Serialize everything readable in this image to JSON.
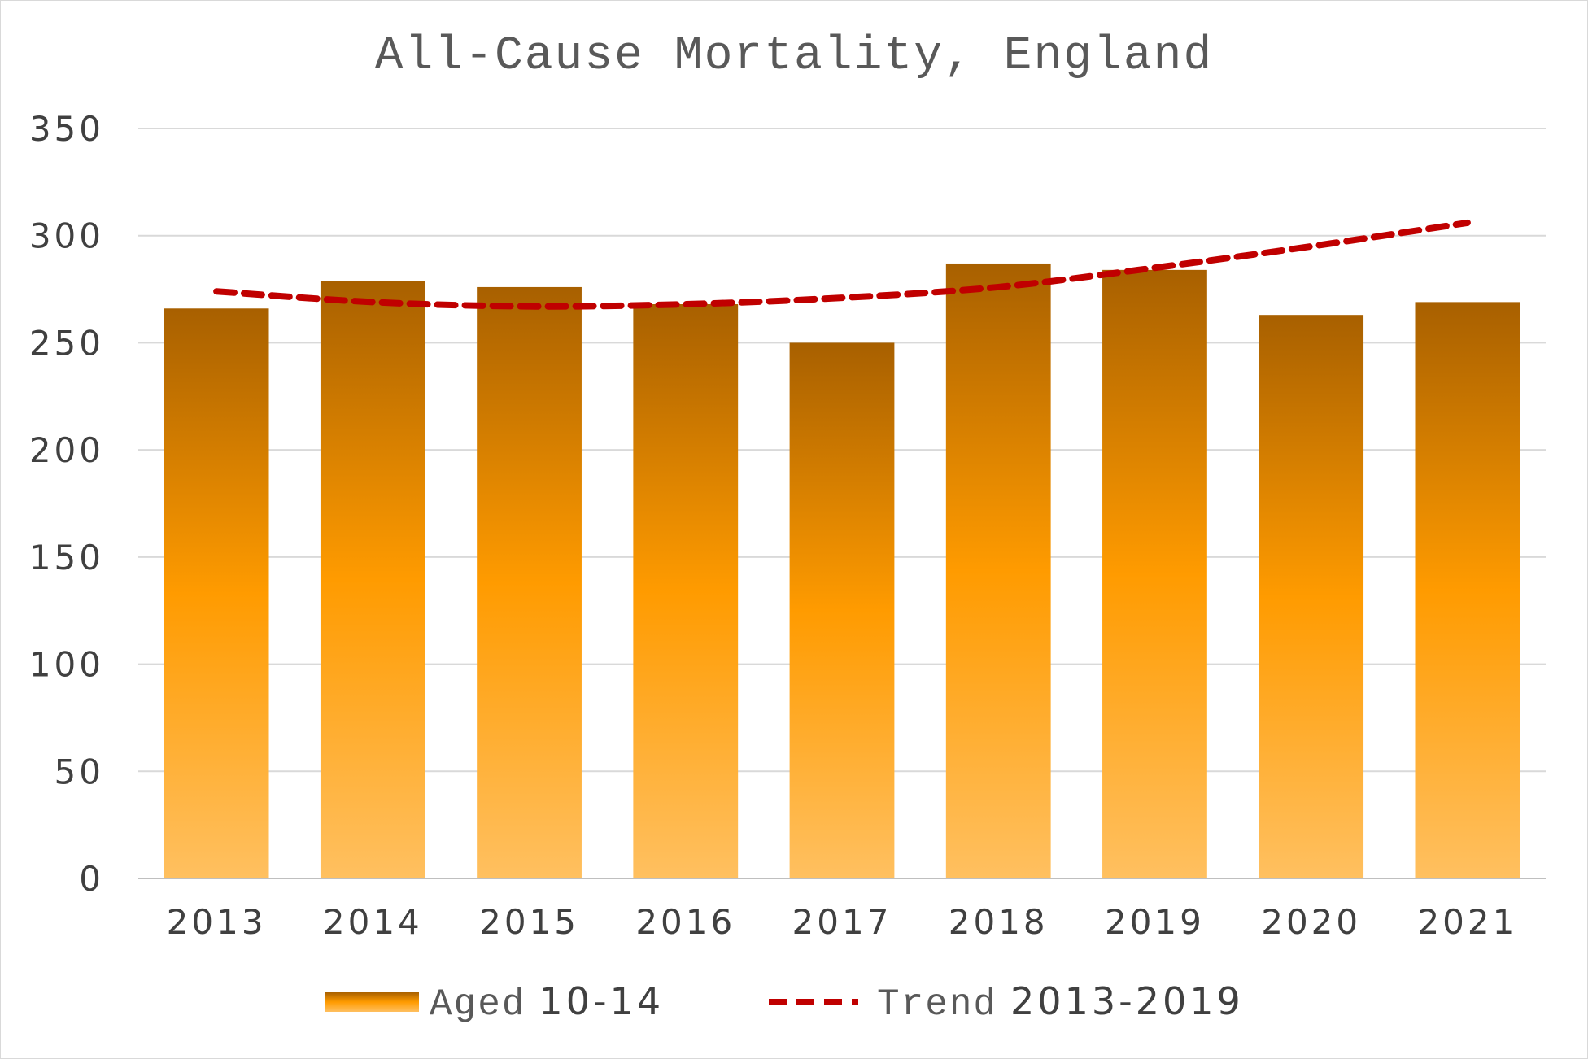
{
  "chart_data": {
    "type": "bar",
    "title_main": "All-Cause Mortality, England",
    "categories": [
      "2013",
      "2014",
      "2015",
      "2016",
      "2017",
      "2018",
      "2019",
      "2020",
      "2021"
    ],
    "series": [
      {
        "name_text": "Aged",
        "name_num": "10-14",
        "values": [
          266,
          279,
          276,
          268,
          250,
          287,
          284,
          263,
          269
        ]
      },
      {
        "name_text": "Trend",
        "name_num": "2013-2019",
        "style": "dashed-line",
        "values": [
          274,
          269,
          267,
          268,
          271,
          276,
          285,
          295,
          306
        ]
      }
    ],
    "ylim": [
      0,
      350
    ],
    "yticks": [
      "0",
      "50",
      "100",
      "150",
      "200",
      "250",
      "300",
      "350"
    ],
    "grid": true,
    "legend_position": "bottom",
    "colors": {
      "bar_top": "#a86000",
      "bar_mid": "#ff9b00",
      "bar_bottom": "#ffc060",
      "trend": "#c00000",
      "grid": "#d9d9d9",
      "axis": "#bfbfbf"
    }
  }
}
